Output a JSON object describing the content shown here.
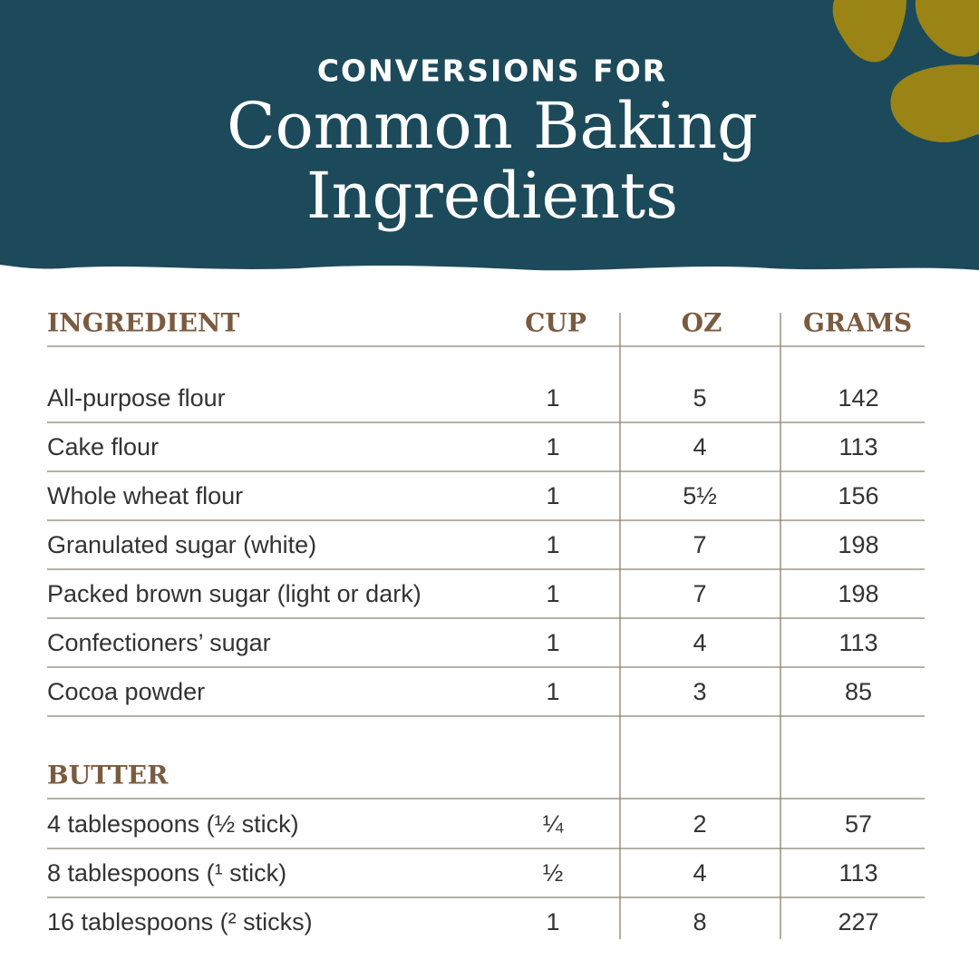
{
  "header": {
    "kicker": "CONVERSIONS FOR",
    "title": [
      "Common Baking",
      "Ingredients"
    ]
  },
  "table": {
    "columns": [
      "INGREDIENT",
      "CUP",
      "OZ",
      "GRAMS"
    ],
    "rows": [
      [
        "All-purpose flour",
        "1",
        "5",
        "142"
      ],
      [
        "Cake flour",
        "1",
        "4",
        "113"
      ],
      [
        "Whole wheat flour",
        "1",
        "5½",
        "156"
      ],
      [
        "Granulated sugar (white)",
        "1",
        "7",
        "198"
      ],
      [
        "Packed brown sugar (light or dark)",
        "1",
        "7",
        "198"
      ],
      [
        "Confectioners’ sugar",
        "1",
        "4",
        "113"
      ],
      [
        "Cocoa powder",
        "1",
        "3",
        "85"
      ]
    ],
    "section": {
      "title": "BUTTER",
      "rows": [
        [
          "4 tablespoons (½ stick)",
          "¼",
          "2",
          "57"
        ],
        [
          "8 tablespoons (¹ stick)",
          "½",
          "4",
          "113"
        ],
        [
          "16 tablespoons (² sticks)",
          "1",
          "8",
          "227"
        ]
      ]
    }
  }
}
